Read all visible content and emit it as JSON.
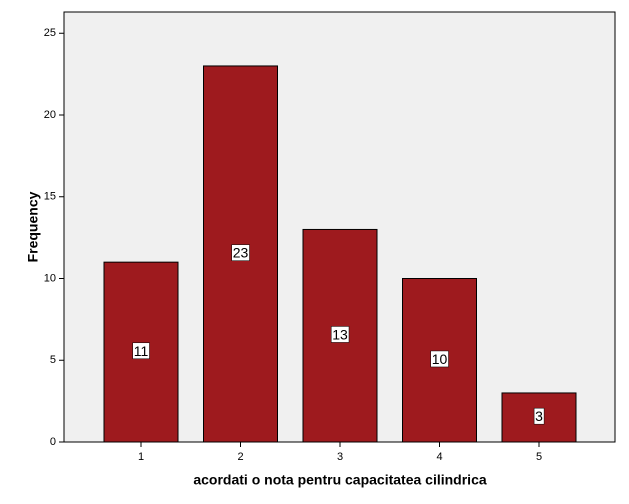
{
  "chart_data": {
    "type": "bar",
    "x_label": "acordati o nota pentru capacitatea cilindrica",
    "y_label": "Frequency",
    "categories": [
      "1",
      "2",
      "3",
      "4",
      "5"
    ],
    "values": [
      11,
      23,
      13,
      10,
      3
    ],
    "color": "#9e1a1e",
    "ylim": [
      0,
      26.3
    ],
    "yticks": [
      0,
      5,
      10,
      15,
      20,
      25
    ],
    "data_labels": true
  }
}
